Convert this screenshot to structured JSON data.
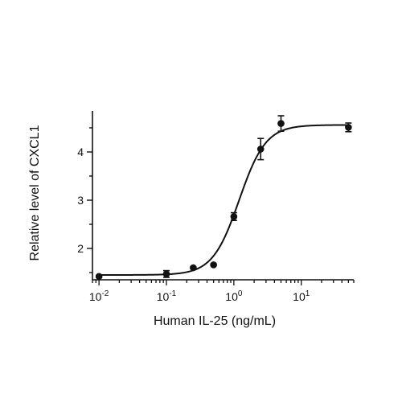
{
  "chart_data": {
    "type": "scatter",
    "title": "",
    "xlabel": "Human IL-25 (ng/mL)",
    "ylabel": "Relative level of CXCL1",
    "x_scale": "log",
    "xlim": [
      0.008,
      60
    ],
    "ylim": [
      1.35,
      4.85
    ],
    "x_ticks": [
      {
        "value": 0.01,
        "label": "10",
        "exp": "-2"
      },
      {
        "value": 0.1,
        "label": "10",
        "exp": "-1"
      },
      {
        "value": 1,
        "label": "10",
        "exp": "0"
      },
      {
        "value": 10,
        "label": "10",
        "exp": "1"
      }
    ],
    "y_ticks": [
      {
        "value": 2,
        "label": "2"
      },
      {
        "value": 3,
        "label": "3"
      },
      {
        "value": 4,
        "label": "4"
      }
    ],
    "grid": false,
    "legend": "none",
    "series": [
      {
        "marker_color": "#111111",
        "points": [
          {
            "x": 0.01,
            "y": 1.42,
            "err": 0.02
          },
          {
            "x": 0.1,
            "y": 1.47,
            "err": 0.07
          },
          {
            "x": 0.25,
            "y": 1.6,
            "err": 0.02
          },
          {
            "x": 0.5,
            "y": 1.66,
            "err": 0.02
          },
          {
            "x": 1,
            "y": 2.66,
            "err": 0.08
          },
          {
            "x": 2.5,
            "y": 4.06,
            "err": 0.22
          },
          {
            "x": 5,
            "y": 4.59,
            "err": 0.16
          },
          {
            "x": 50,
            "y": 4.51,
            "err": 0.09
          }
        ]
      }
    ],
    "fit": {
      "model": "4PL",
      "bottom": 1.45,
      "top": 4.56,
      "ec50": 1.2,
      "hill": 2.2,
      "color": "#111111"
    }
  }
}
